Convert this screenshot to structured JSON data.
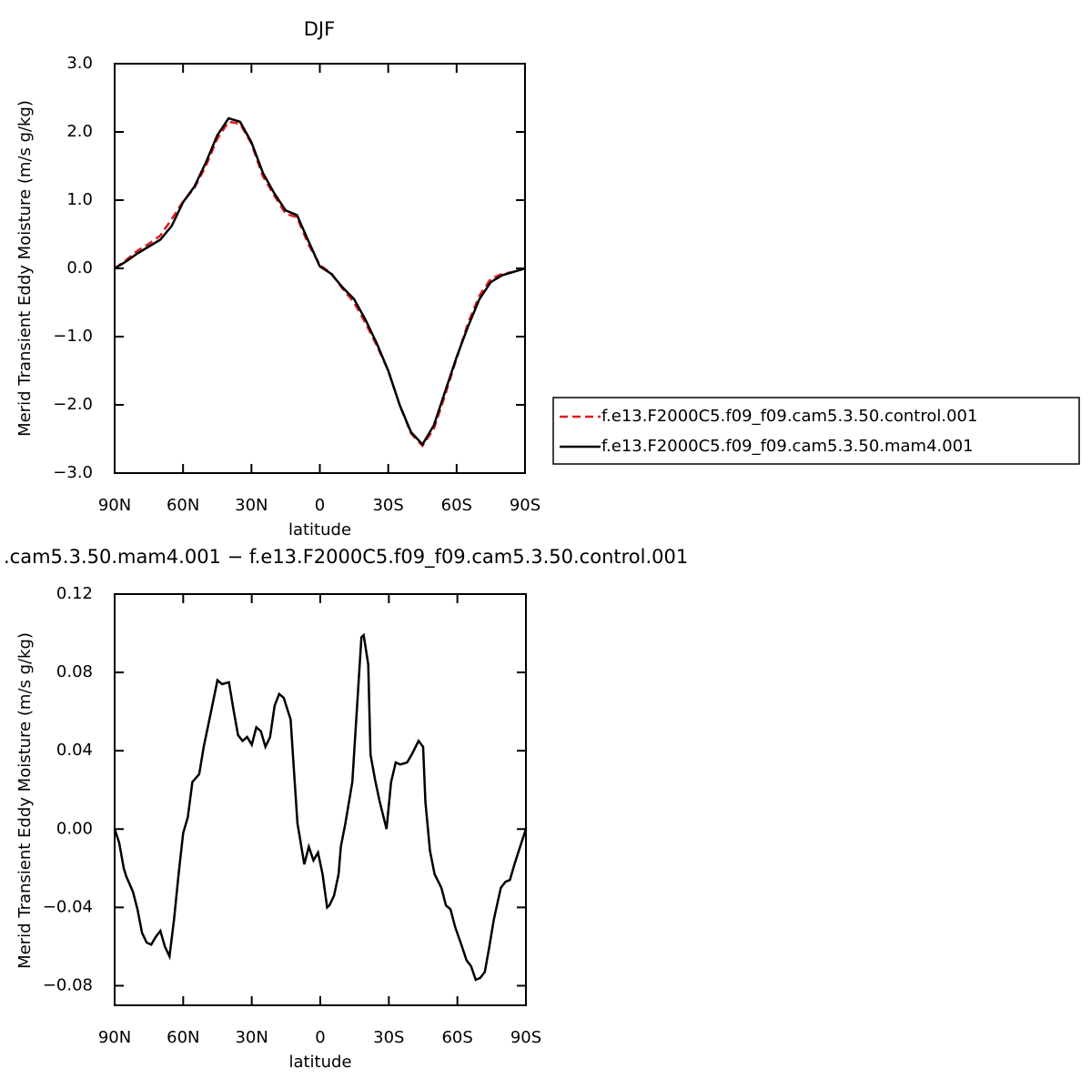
{
  "chart_data": [
    {
      "type": "line",
      "title": "DJF",
      "xlabel": "latitude",
      "ylabel": "Merid Transient Eddy Moisture (m/s g/kg)",
      "x": [
        90,
        85,
        80,
        75,
        70,
        65,
        60,
        55,
        50,
        45,
        40,
        35,
        30,
        25,
        20,
        15,
        10,
        5,
        0,
        -5,
        -10,
        -15,
        -20,
        -25,
        -30,
        -35,
        -40,
        -45,
        -50,
        -55,
        -60,
        -65,
        -70,
        -75,
        -80,
        -85,
        -90
      ],
      "series": [
        {
          "name": "f.e13.F2000C5.f09_f09.cam5.3.50.control.001",
          "color": "#e41a1c",
          "dashed": true,
          "values": [
            0,
            0.12,
            0.26,
            0.36,
            0.48,
            0.72,
            0.98,
            1.18,
            1.5,
            1.9,
            2.15,
            2.12,
            1.83,
            1.35,
            1.07,
            0.8,
            0.75,
            0.35,
            0.05,
            -0.07,
            -0.3,
            -0.5,
            -0.8,
            -1.13,
            -1.5,
            -2.0,
            -2.42,
            -2.6,
            -2.35,
            -1.85,
            -1.32,
            -0.8,
            -0.4,
            -0.15,
            -0.08,
            -0.05,
            0
          ]
        },
        {
          "name": "f.e13.F2000C5.f09_f09.cam5.3.50.mam4.001",
          "color": "#000000",
          "dashed": false,
          "values": [
            0,
            0.1,
            0.22,
            0.32,
            0.42,
            0.62,
            0.97,
            1.2,
            1.55,
            1.95,
            2.2,
            2.15,
            1.85,
            1.4,
            1.1,
            0.85,
            0.78,
            0.4,
            0.03,
            -0.08,
            -0.28,
            -0.45,
            -0.75,
            -1.1,
            -1.5,
            -2.0,
            -2.4,
            -2.58,
            -2.3,
            -1.8,
            -1.3,
            -0.85,
            -0.45,
            -0.2,
            -0.1,
            -0.05,
            0
          ]
        }
      ],
      "xlim": [
        90,
        -90
      ],
      "xticks": [
        {
          "value": 90,
          "label": "90N"
        },
        {
          "value": 60,
          "label": "60N"
        },
        {
          "value": 30,
          "label": "30N"
        },
        0,
        {
          "value": -30,
          "label": "30S"
        },
        {
          "value": -60,
          "label": "60S"
        },
        {
          "value": -90,
          "label": "90S"
        }
      ],
      "ylim": [
        -3,
        3
      ],
      "yticks": [
        {
          "value": 3,
          "label": "3.0"
        },
        {
          "value": 2,
          "label": "2.0"
        },
        {
          "value": 1,
          "label": "1.0"
        },
        {
          "value": 0,
          "label": "0.0"
        },
        {
          "value": -1,
          "label": "−1.0"
        },
        {
          "value": -2,
          "label": "−2.0"
        },
        {
          "value": -3,
          "label": "−3.0"
        }
      ]
    },
    {
      "type": "line",
      "title": ".cam5.3.50.mam4.001 − f.e13.F2000C5.f09_f09.cam5.3.50.control.001",
      "xlabel": "latitude",
      "ylabel": "Merid Transient Eddy Moisture (m/s g/kg)",
      "x": [
        90,
        88,
        86,
        85,
        82,
        80,
        78,
        76,
        74,
        72,
        70,
        68,
        66,
        64,
        62,
        60,
        58,
        56,
        53,
        51,
        48,
        45,
        43,
        40,
        38,
        36,
        34,
        32,
        30,
        28,
        26,
        24,
        22,
        20,
        18,
        16,
        13,
        12,
        10,
        7,
        5,
        3,
        1,
        -1,
        -3,
        -4,
        -6,
        -8,
        -9,
        -11,
        -14,
        -16,
        -18,
        -19,
        -21,
        -22,
        -24,
        -26,
        -29,
        -31,
        -33,
        -35,
        -38,
        -40,
        -43,
        -45,
        -46,
        -48,
        -50,
        -53,
        -55,
        -57,
        -59,
        -62,
        -64,
        -66,
        -68,
        -70,
        -72,
        -74,
        -76,
        -79,
        -81,
        -83,
        -85,
        -88,
        -90
      ],
      "series": [
        {
          "color": "#000000",
          "dashed": false,
          "values": [
            0,
            -0.007,
            -0.02,
            -0.024,
            -0.032,
            -0.041,
            -0.053,
            -0.058,
            -0.059,
            -0.055,
            -0.052,
            -0.06,
            -0.065,
            -0.046,
            -0.023,
            -0.002,
            0.006,
            0.024,
            0.028,
            0.042,
            0.059,
            0.076,
            0.074,
            0.075,
            0.061,
            0.048,
            0.045,
            0.047,
            0.043,
            0.052,
            0.05,
            0.042,
            0.047,
            0.063,
            0.069,
            0.067,
            0.056,
            0.038,
            0.003,
            -0.018,
            -0.009,
            -0.016,
            -0.012,
            -0.023,
            -0.04,
            -0.039,
            -0.034,
            -0.023,
            -0.009,
            0.003,
            0.024,
            0.061,
            0.098,
            0.099,
            0.084,
            0.038,
            0.025,
            0.014,
            0,
            0.024,
            0.034,
            0.033,
            0.034,
            0.038,
            0.045,
            0.042,
            0.014,
            -0.011,
            -0.023,
            -0.03,
            -0.039,
            -0.041,
            -0.05,
            -0.06,
            -0.067,
            -0.07,
            -0.077,
            -0.076,
            -0.073,
            -0.06,
            -0.046,
            -0.03,
            -0.027,
            -0.026,
            -0.018,
            -0.007,
            0
          ]
        }
      ],
      "xlim": [
        90,
        -90
      ],
      "xticks": [
        {
          "value": 90,
          "label": "90N"
        },
        {
          "value": 60,
          "label": "60N"
        },
        {
          "value": 30,
          "label": "30N"
        },
        0,
        {
          "value": -30,
          "label": "30S"
        },
        {
          "value": -60,
          "label": "60S"
        },
        {
          "value": -90,
          "label": "90S"
        }
      ],
      "ylim": [
        -0.09,
        0.12
      ],
      "yticks": [
        0.12,
        0.08,
        0.04,
        {
          "value": 0,
          "label": "0.00"
        },
        {
          "value": -0.04,
          "label": "−0.04"
        },
        {
          "value": -0.08,
          "label": "−0.08"
        }
      ]
    }
  ]
}
